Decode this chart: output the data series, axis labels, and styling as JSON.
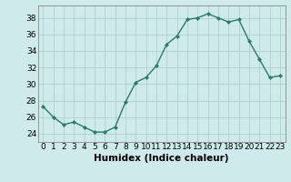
{
  "x": [
    0,
    1,
    2,
    3,
    4,
    5,
    6,
    7,
    8,
    9,
    10,
    11,
    12,
    13,
    14,
    15,
    16,
    17,
    18,
    19,
    20,
    21,
    22,
    23
  ],
  "y": [
    27.3,
    26.0,
    25.1,
    25.4,
    24.8,
    24.2,
    24.2,
    24.8,
    27.8,
    30.2,
    30.8,
    32.2,
    34.8,
    35.8,
    37.8,
    38.0,
    38.5,
    38.0,
    37.5,
    37.8,
    35.2,
    33.0,
    30.8,
    31.0
  ],
  "line_color": "#2a7a6a",
  "marker": "D",
  "marker_size": 2.2,
  "line_width": 1.0,
  "xlabel": "Humidex (Indice chaleur)",
  "xlim": [
    -0.5,
    23.5
  ],
  "ylim": [
    23.0,
    39.5
  ],
  "yticks": [
    24,
    26,
    28,
    30,
    32,
    34,
    36,
    38
  ],
  "xtick_labels": [
    "0",
    "1",
    "2",
    "3",
    "4",
    "5",
    "6",
    "7",
    "8",
    "9",
    "10",
    "11",
    "12",
    "13",
    "14",
    "15",
    "16",
    "17",
    "18",
    "19",
    "20",
    "21",
    "22",
    "23"
  ],
  "bg_color": "#ceeaea",
  "grid_color": "#b0d0d0",
  "tick_fontsize": 6.5,
  "label_fontsize": 7.5
}
